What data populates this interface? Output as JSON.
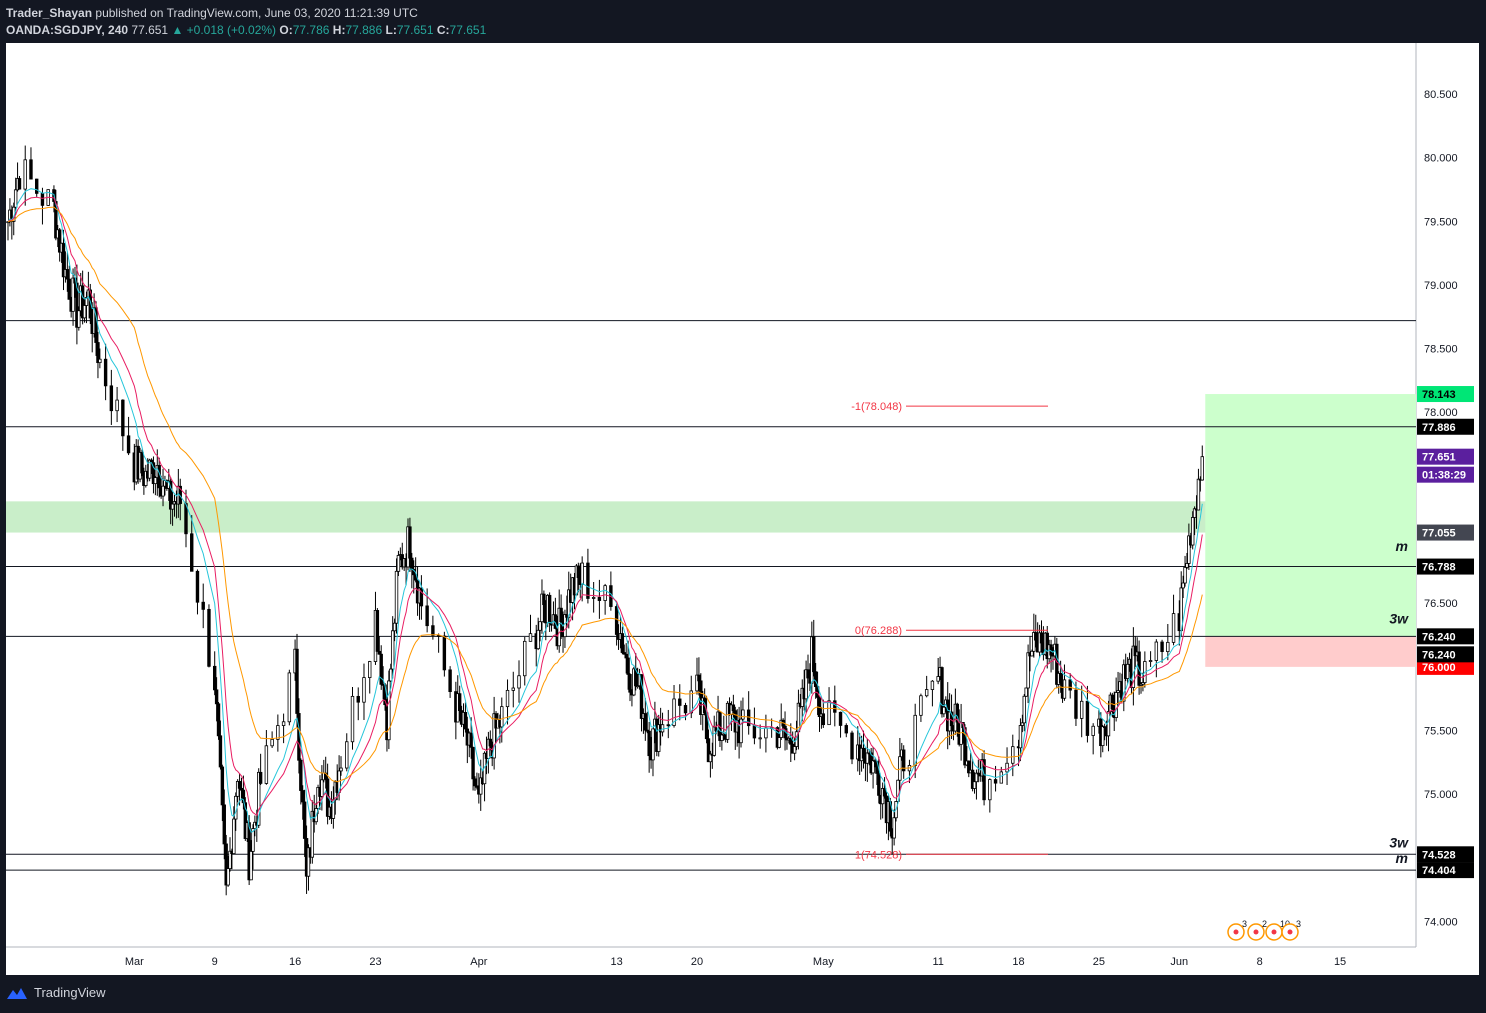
{
  "header": {
    "publisher": "Trader_Shayan",
    "published_text": "published on TradingView.com, June 03, 2020 11:21:39 UTC",
    "symbol": "OANDA:SGDJPY, 240",
    "last": "77.651",
    "change": "▲ +0.018 (+0.02%)",
    "o_label": "O:",
    "o": "77.786",
    "h_label": "H:",
    "h": "77.886",
    "l_label": "L:",
    "l": "77.651",
    "c_label": "C:",
    "c": "77.651"
  },
  "footer": {
    "brand": "TradingView"
  },
  "colors": {
    "candle": "#000000",
    "ema_fast": "#26c6da",
    "ema_mid": "#e91e63",
    "ema_slow": "#ff9800",
    "zone": "#b7e8b7",
    "target_zone": "#ccffcc",
    "stop_zone": "#ffcccc",
    "fib": "#f23645",
    "price_tag": "#5b1f9e"
  },
  "chart_data": {
    "type": "candlestick",
    "symbol": "OANDA:SGDJPY",
    "timeframe": "240",
    "ylim": [
      73.8,
      80.9
    ],
    "y_ticks": [
      "74.000",
      "75.000",
      "75.500",
      "76.500",
      "78.000",
      "78.500",
      "79.000",
      "79.500",
      "80.000",
      "80.500"
    ],
    "x_ticks": [
      "Mar",
      "9",
      "16",
      "23",
      "Apr",
      "13",
      "20",
      "May",
      "11",
      "18",
      "25",
      "Jun",
      "8",
      "15"
    ],
    "price_path": [
      [
        "2020-02-20",
        79.5
      ],
      [
        "2020-02-21",
        79.9
      ],
      [
        "2020-02-24",
        79.6
      ],
      [
        "2020-02-25",
        79.1
      ],
      [
        "2020-02-26",
        78.8
      ],
      [
        "2020-02-27",
        78.9
      ],
      [
        "2020-02-28",
        78.4
      ],
      [
        "2020-03-02",
        77.6
      ],
      [
        "2020-03-03",
        77.5
      ],
      [
        "2020-03-04",
        77.6
      ],
      [
        "2020-03-05",
        77.3
      ],
      [
        "2020-03-06",
        77.3
      ],
      [
        "2020-03-09",
        75.9
      ],
      [
        "2020-03-10",
        74.2
      ],
      [
        "2020-03-11",
        75.2
      ],
      [
        "2020-03-12",
        74.5
      ],
      [
        "2020-03-13",
        75.1
      ],
      [
        "2020-03-16",
        76.0
      ],
      [
        "2020-03-17",
        74.3
      ],
      [
        "2020-03-18",
        75.2
      ],
      [
        "2020-03-19",
        74.9
      ],
      [
        "2020-03-20",
        75.3
      ],
      [
        "2020-03-23",
        76.4
      ],
      [
        "2020-03-24",
        75.6
      ],
      [
        "2020-03-25",
        76.8
      ],
      [
        "2020-03-26",
        77.0
      ],
      [
        "2020-03-27",
        76.5
      ],
      [
        "2020-03-30",
        75.7
      ],
      [
        "2020-03-31",
        75.4
      ],
      [
        "2020-04-01",
        74.9
      ],
      [
        "2020-04-02",
        75.4
      ],
      [
        "2020-04-03",
        75.6
      ],
      [
        "2020-04-06",
        76.3
      ],
      [
        "2020-04-07",
        76.5
      ],
      [
        "2020-04-08",
        76.3
      ],
      [
        "2020-04-09",
        76.6
      ],
      [
        "2020-04-10",
        76.7
      ],
      [
        "2020-04-13",
        76.4
      ],
      [
        "2020-04-14",
        76.0
      ],
      [
        "2020-04-15",
        75.8
      ],
      [
        "2020-04-16",
        75.4
      ],
      [
        "2020-04-17",
        75.6
      ],
      [
        "2020-04-20",
        75.8
      ],
      [
        "2020-04-21",
        75.4
      ],
      [
        "2020-04-22",
        75.5
      ],
      [
        "2020-04-23",
        75.6
      ],
      [
        "2020-04-24",
        75.5
      ],
      [
        "2020-04-27",
        75.5
      ],
      [
        "2020-04-28",
        75.4
      ],
      [
        "2020-04-29",
        75.6
      ],
      [
        "2020-04-30",
        76.1
      ],
      [
        "2020-05-01",
        75.6
      ],
      [
        "2020-05-04",
        75.4
      ],
      [
        "2020-05-05",
        75.3
      ],
      [
        "2020-05-06",
        75.1
      ],
      [
        "2020-05-07",
        74.8
      ],
      [
        "2020-05-08",
        75.3
      ],
      [
        "2020-05-11",
        75.9
      ],
      [
        "2020-05-12",
        75.6
      ],
      [
        "2020-05-13",
        75.5
      ],
      [
        "2020-05-14",
        75.2
      ],
      [
        "2020-05-15",
        75.1
      ],
      [
        "2020-05-18",
        75.5
      ],
      [
        "2020-05-19",
        76.1
      ],
      [
        "2020-05-20",
        76.2
      ],
      [
        "2020-05-21",
        76.1
      ],
      [
        "2020-05-22",
        75.8
      ],
      [
        "2020-05-25",
        75.5
      ],
      [
        "2020-05-26",
        75.7
      ],
      [
        "2020-05-27",
        75.9
      ],
      [
        "2020-05-28",
        76.0
      ],
      [
        "2020-05-29",
        75.9
      ],
      [
        "2020-06-01",
        76.4
      ],
      [
        "2020-06-02",
        77.1
      ],
      [
        "2020-06-03",
        77.651
      ]
    ],
    "horizontal_levels": [
      {
        "price": 78.72,
        "label": "78.720"
      },
      {
        "price": 77.886,
        "label": "77.886"
      },
      {
        "price": 76.788,
        "label": "76.788"
      },
      {
        "price": 76.24,
        "label": "76.240"
      },
      {
        "price": 74.528,
        "label": "74.528"
      },
      {
        "price": 74.404,
        "label": "74.404"
      }
    ],
    "price_tags": [
      {
        "price": 78.143,
        "label": "78.143",
        "bg": "#00e676",
        "fg": "#000000"
      },
      {
        "price": 77.886,
        "label": "77.886",
        "bg": "#000000",
        "fg": "#ffffff"
      },
      {
        "price": 77.651,
        "label": "77.651",
        "bg": "#5b1f9e",
        "fg": "#ffffff"
      },
      {
        "price": 77.055,
        "label": "77.055",
        "bg": "#434651",
        "fg": "#ffffff"
      },
      {
        "price": 76.788,
        "label": "76.788",
        "bg": "#000000",
        "fg": "#ffffff"
      },
      {
        "price": 76.24,
        "label": "76.240",
        "bg": "#000000",
        "fg": "#ffffff"
      },
      {
        "price": 76.0,
        "label": "76.000",
        "bg": "#ff0000",
        "fg": "#ffffff"
      },
      {
        "price": 74.528,
        "label": "74.528",
        "bg": "#000000",
        "fg": "#ffffff"
      },
      {
        "price": 74.404,
        "label": "74.404",
        "bg": "#000000",
        "fg": "#ffffff"
      }
    ],
    "extra_tags": [
      {
        "label": "01:38:29",
        "bg": "#5b1f9e",
        "fg": "#ffffff"
      },
      {
        "label": "76.240",
        "bg": "#000000",
        "fg": "#ffffff"
      }
    ],
    "zones": [
      {
        "name": "demand-zone",
        "from": 77.055,
        "to": 77.3
      },
      {
        "name": "target-zone",
        "from": 76.24,
        "to": 78.143
      },
      {
        "name": "stop-zone",
        "from": 76.0,
        "to": 76.24
      }
    ],
    "fib_labels": [
      {
        "label": "-1(78.048)",
        "price": 78.048
      },
      {
        "label": "0(76.288)",
        "price": 76.288
      },
      {
        "label": "1(74.528)",
        "price": 74.528
      }
    ],
    "wave_labels": [
      {
        "label": "m",
        "price": 76.95
      },
      {
        "label": "3w",
        "price": 76.38
      },
      {
        "label": "3w",
        "price": 74.62
      },
      {
        "label": "m",
        "price": 74.5
      }
    ],
    "events_text": [
      "3",
      "2",
      "10",
      "3"
    ]
  }
}
